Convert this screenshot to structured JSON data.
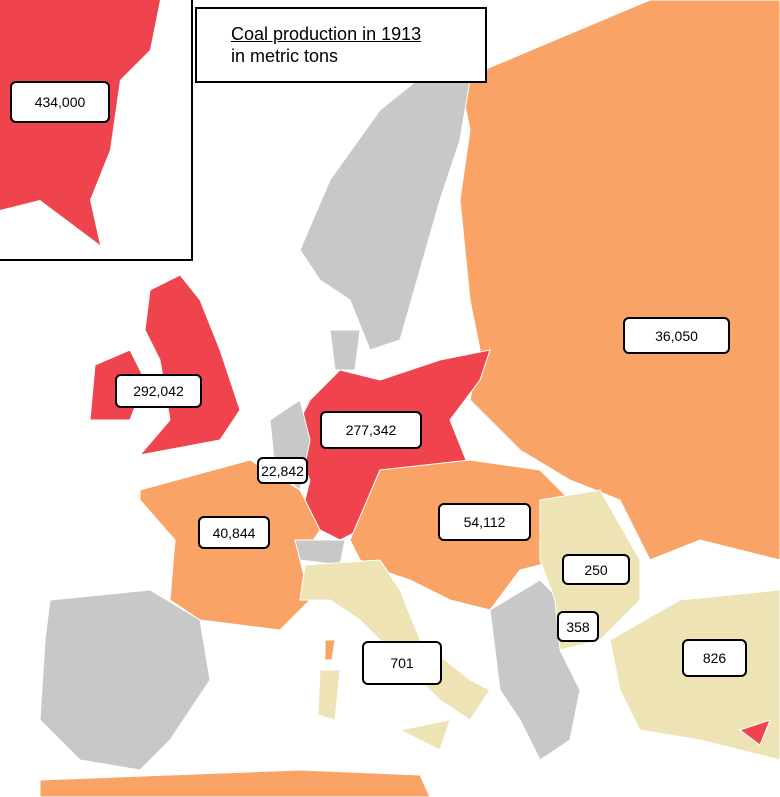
{
  "title": "Coal production in 1913",
  "subtitle": "in metric tons",
  "labels": [
    "434,000",
    "36,050",
    "292,042",
    "277,342",
    "22,842",
    "40,844",
    "54,112",
    "250",
    "358",
    "701",
    "826"
  ]
}
